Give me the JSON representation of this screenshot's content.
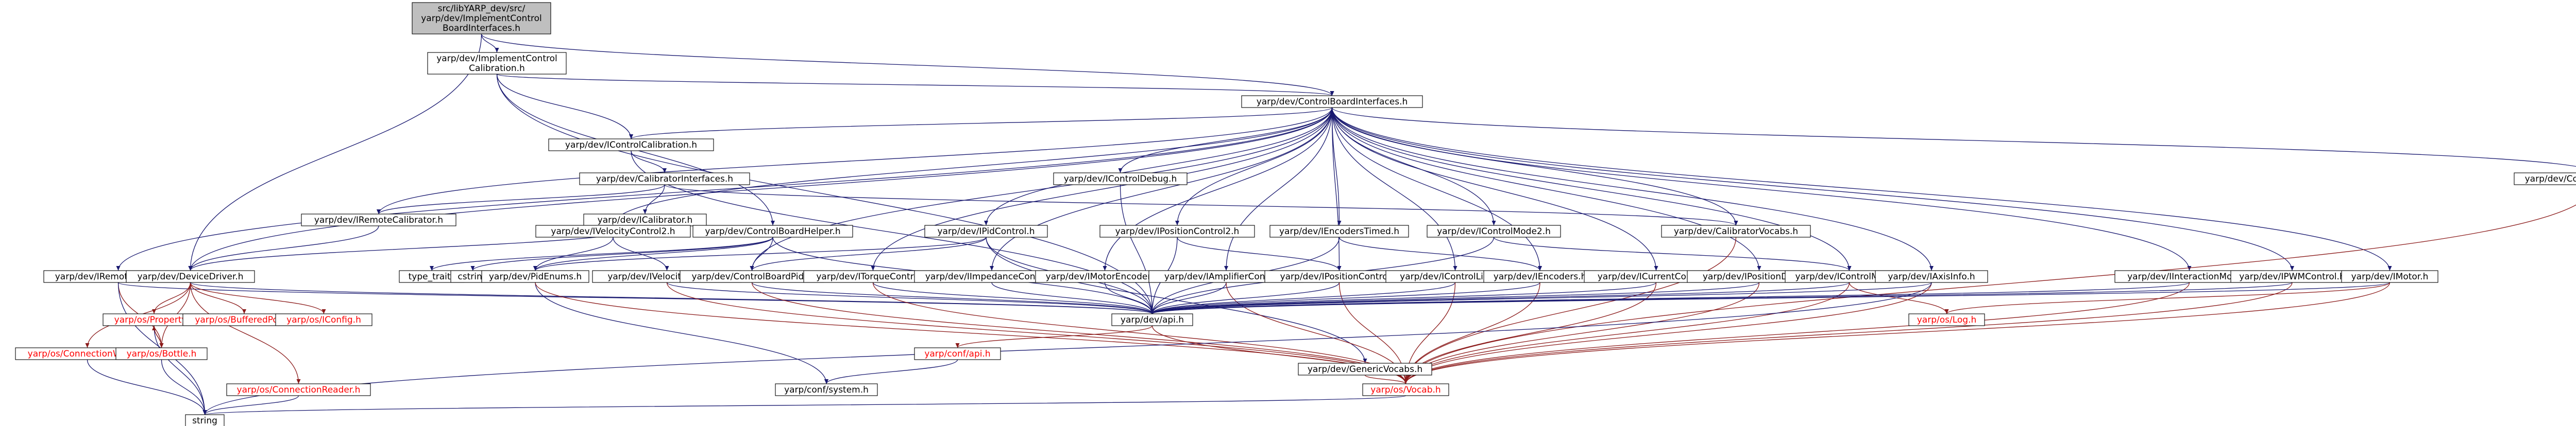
{
  "colors": {
    "root_fill": "#bfbfbf",
    "node_fill": "#ffffff",
    "node_border": "#000000",
    "missing_text": "#ff0000",
    "edge": "#191970",
    "edge_missing": "#8b1a1a"
  },
  "nodes": [
    {
      "id": "root",
      "lines": [
        "src/libYARP_dev/src/",
        "yarp/dev/ImplementControl",
        "BoardInterfaces.h"
      ],
      "kind": "root"
    },
    {
      "id": "implCal",
      "lines": [
        "yarp/dev/ImplementControl",
        "Calibration.h"
      ],
      "kind": "normal"
    },
    {
      "id": "cbi",
      "lines": [
        "yarp/dev/ControlBoardInterfaces.h"
      ],
      "kind": "normal"
    },
    {
      "id": "remoteVars",
      "lines": [
        "yarp/dev/IRemoteVariables.h"
      ],
      "kind": "normal"
    },
    {
      "id": "remoteCal",
      "lines": [
        "yarp/dev/IRemoteCalibrator.h"
      ],
      "kind": "normal"
    },
    {
      "id": "ctrlCal",
      "lines": [
        "yarp/dev/IControlCalibration.h"
      ],
      "kind": "normal"
    },
    {
      "id": "calIfaces",
      "lines": [
        "yarp/dev/CalibratorInterfaces.h"
      ],
      "kind": "normal"
    },
    {
      "id": "calibrator",
      "lines": [
        "yarp/dev/ICalibrator.h"
      ],
      "kind": "normal"
    },
    {
      "id": "velCtrl2",
      "lines": [
        "yarp/dev/IVelocityControl2.h"
      ],
      "kind": "normal"
    },
    {
      "id": "cbHelper",
      "lines": [
        "yarp/dev/ControlBoardHelper.h"
      ],
      "kind": "normal"
    },
    {
      "id": "pidCtrl",
      "lines": [
        "yarp/dev/IPidControl.h"
      ],
      "kind": "normal"
    },
    {
      "id": "ctrlDebug",
      "lines": [
        "yarp/dev/IControlDebug.h"
      ],
      "kind": "normal"
    },
    {
      "id": "posCtrl2",
      "lines": [
        "yarp/dev/IPositionControl2.h"
      ],
      "kind": "normal"
    },
    {
      "id": "encTimed",
      "lines": [
        "yarp/dev/IEncodersTimed.h"
      ],
      "kind": "normal"
    },
    {
      "id": "ctrlMode2",
      "lines": [
        "yarp/dev/IControlMode2.h"
      ],
      "kind": "normal"
    },
    {
      "id": "calVocabs",
      "lines": [
        "yarp/dev/CalibratorVocabs.h"
      ],
      "kind": "normal"
    },
    {
      "id": "cbVocabs",
      "lines": [
        "yarp/dev/ControlBoardVocabs.h"
      ],
      "kind": "normal"
    },
    {
      "id": "devDriver",
      "lines": [
        "yarp/dev/DeviceDriver.h"
      ],
      "kind": "normal"
    },
    {
      "id": "typeTraits",
      "lines": [
        "type_traits"
      ],
      "kind": "plain"
    },
    {
      "id": "cstring",
      "lines": [
        "cstring"
      ],
      "kind": "plain"
    },
    {
      "id": "pidEnums",
      "lines": [
        "yarp/dev/PidEnums.h"
      ],
      "kind": "normal"
    },
    {
      "id": "velCtrl",
      "lines": [
        "yarp/dev/IVelocityControl.h"
      ],
      "kind": "normal"
    },
    {
      "id": "cbPid",
      "lines": [
        "yarp/dev/ControlBoardPid.h"
      ],
      "kind": "normal"
    },
    {
      "id": "torque",
      "lines": [
        "yarp/dev/ITorqueControl.h"
      ],
      "kind": "normal"
    },
    {
      "id": "impedance",
      "lines": [
        "yarp/dev/IImpedanceControl.h"
      ],
      "kind": "normal"
    },
    {
      "id": "motorEnc",
      "lines": [
        "yarp/dev/IMotorEncoders.h"
      ],
      "kind": "normal"
    },
    {
      "id": "amplifier",
      "lines": [
        "yarp/dev/IAmplifierControl.h"
      ],
      "kind": "normal"
    },
    {
      "id": "posCtrl",
      "lines": [
        "yarp/dev/IPositionControl.h"
      ],
      "kind": "normal"
    },
    {
      "id": "ctrlLimits",
      "lines": [
        "yarp/dev/IControlLimits.h"
      ],
      "kind": "normal"
    },
    {
      "id": "encoders",
      "lines": [
        "yarp/dev/IEncoders.h"
      ],
      "kind": "normal"
    },
    {
      "id": "current",
      "lines": [
        "yarp/dev/ICurrentControl.h"
      ],
      "kind": "normal"
    },
    {
      "id": "posDirect",
      "lines": [
        "yarp/dev/IPositionDirect.h"
      ],
      "kind": "normal"
    },
    {
      "id": "ctrlMode",
      "lines": [
        "yarp/dev/IControlMode.h"
      ],
      "kind": "normal"
    },
    {
      "id": "axisInfo",
      "lines": [
        "yarp/dev/IAxisInfo.h"
      ],
      "kind": "normal"
    },
    {
      "id": "interMode",
      "lines": [
        "yarp/dev/IInteractionMode.h"
      ],
      "kind": "normal"
    },
    {
      "id": "pwm",
      "lines": [
        "yarp/dev/IPWMControl.h"
      ],
      "kind": "normal"
    },
    {
      "id": "motor",
      "lines": [
        "yarp/dev/IMotor.h"
      ],
      "kind": "normal"
    },
    {
      "id": "property",
      "lines": [
        "yarp/os/Property.h"
      ],
      "kind": "missing"
    },
    {
      "id": "buffPort",
      "lines": [
        "yarp/os/BufferedPort.h"
      ],
      "kind": "missing"
    },
    {
      "id": "osConfig",
      "lines": [
        "yarp/os/IConfig.h"
      ],
      "kind": "missing"
    },
    {
      "id": "connWriter",
      "lines": [
        "yarp/os/ConnectionWriter.h"
      ],
      "kind": "missing"
    },
    {
      "id": "bottle",
      "lines": [
        "yarp/os/Bottle.h"
      ],
      "kind": "missing"
    },
    {
      "id": "connReader",
      "lines": [
        "yarp/os/ConnectionReader.h"
      ],
      "kind": "missing"
    },
    {
      "id": "api",
      "lines": [
        "yarp/dev/api.h"
      ],
      "kind": "normal"
    },
    {
      "id": "osLog",
      "lines": [
        "yarp/os/Log.h"
      ],
      "kind": "missing"
    },
    {
      "id": "confApi",
      "lines": [
        "yarp/conf/api.h"
      ],
      "kind": "missing"
    },
    {
      "id": "genVocabs",
      "lines": [
        "yarp/dev/GenericVocabs.h"
      ],
      "kind": "normal"
    },
    {
      "id": "vocab",
      "lines": [
        "yarp/os/Vocab.h"
      ],
      "kind": "missing"
    },
    {
      "id": "confSystem",
      "lines": [
        "yarp/conf/system.h"
      ],
      "kind": "normal"
    },
    {
      "id": "string",
      "lines": [
        "string"
      ],
      "kind": "plain"
    }
  ],
  "edges": [
    [
      "root",
      "implCal"
    ],
    [
      "root",
      "cbi"
    ],
    [
      "root",
      "devDriver"
    ],
    [
      "implCal",
      "cbi"
    ],
    [
      "implCal",
      "ctrlCal"
    ],
    [
      "implCal",
      "cbHelper"
    ],
    [
      "implCal",
      "api"
    ],
    [
      "cbi",
      "remoteVars"
    ],
    [
      "cbi",
      "remoteCal"
    ],
    [
      "cbi",
      "ctrlCal"
    ],
    [
      "cbi",
      "velCtrl2"
    ],
    [
      "cbi",
      "pidCtrl"
    ],
    [
      "cbi",
      "ctrlDebug"
    ],
    [
      "cbi",
      "posCtrl2"
    ],
    [
      "cbi",
      "encTimed"
    ],
    [
      "cbi",
      "ctrlMode2"
    ],
    [
      "cbi",
      "calVocabs"
    ],
    [
      "cbi",
      "cbVocabs"
    ],
    [
      "cbi",
      "devDriver"
    ],
    [
      "cbi",
      "cbPid"
    ],
    [
      "cbi",
      "torque"
    ],
    [
      "cbi",
      "impedance"
    ],
    [
      "cbi",
      "motorEnc"
    ],
    [
      "cbi",
      "amplifier"
    ],
    [
      "cbi",
      "posCtrl"
    ],
    [
      "cbi",
      "ctrlLimits"
    ],
    [
      "cbi",
      "encoders"
    ],
    [
      "cbi",
      "current"
    ],
    [
      "cbi",
      "posDirect"
    ],
    [
      "cbi",
      "ctrlMode"
    ],
    [
      "cbi",
      "axisInfo"
    ],
    [
      "cbi",
      "interMode"
    ],
    [
      "cbi",
      "pwm"
    ],
    [
      "cbi",
      "motor"
    ],
    [
      "ctrlCal",
      "calIfaces"
    ],
    [
      "ctrlCal",
      "api"
    ],
    [
      "calIfaces",
      "calibrator"
    ],
    [
      "calIfaces",
      "remoteCal"
    ],
    [
      "calIfaces",
      "calVocabs"
    ],
    [
      "remoteCal",
      "devDriver"
    ],
    [
      "calibrator",
      "devDriver"
    ],
    [
      "remoteVars",
      "bottle"
    ],
    [
      "remoteVars",
      "api"
    ],
    [
      "remoteVars",
      "string"
    ],
    [
      "velCtrl2",
      "velCtrl"
    ],
    [
      "velCtrl2",
      "pidEnums"
    ],
    [
      "cbHelper",
      "typeTraits"
    ],
    [
      "cbHelper",
      "cstring"
    ],
    [
      "cbHelper",
      "pidEnums"
    ],
    [
      "cbHelper",
      "cbPid"
    ],
    [
      "cbHelper",
      "api"
    ],
    [
      "pidCtrl",
      "pidEnums"
    ],
    [
      "pidCtrl",
      "cbPid"
    ],
    [
      "pidCtrl",
      "api"
    ],
    [
      "pidCtrl",
      "genVocabs"
    ],
    [
      "ctrlDebug",
      "api"
    ],
    [
      "posCtrl2",
      "posCtrl"
    ],
    [
      "posCtrl2",
      "api"
    ],
    [
      "encTimed",
      "encoders"
    ],
    [
      "encTimed",
      "api"
    ],
    [
      "ctrlMode2",
      "ctrlMode"
    ],
    [
      "ctrlMode2",
      "api"
    ],
    [
      "calVocabs",
      "vocab"
    ],
    [
      "cbVocabs",
      "vocab"
    ],
    [
      "devDriver",
      "property"
    ],
    [
      "devDriver",
      "buffPort"
    ],
    [
      "devDriver",
      "osConfig"
    ],
    [
      "devDriver",
      "connWriter"
    ],
    [
      "devDriver",
      "bottle"
    ],
    [
      "devDriver",
      "connReader"
    ],
    [
      "devDriver",
      "api"
    ],
    [
      "pidEnums",
      "confSystem"
    ],
    [
      "pidEnums",
      "vocab"
    ],
    [
      "velCtrl",
      "api"
    ],
    [
      "velCtrl",
      "vocab"
    ],
    [
      "cbPid",
      "api"
    ],
    [
      "cbPid",
      "vocab"
    ],
    [
      "torque",
      "api"
    ],
    [
      "torque",
      "vocab"
    ],
    [
      "impedance",
      "api"
    ],
    [
      "motorEnc",
      "api"
    ],
    [
      "amplifier",
      "api"
    ],
    [
      "amplifier",
      "vocab"
    ],
    [
      "posCtrl",
      "api"
    ],
    [
      "posCtrl",
      "vocab"
    ],
    [
      "ctrlLimits",
      "api"
    ],
    [
      "ctrlLimits",
      "vocab"
    ],
    [
      "encoders",
      "api"
    ],
    [
      "encoders",
      "vocab"
    ],
    [
      "current",
      "api"
    ],
    [
      "current",
      "vocab"
    ],
    [
      "posDirect",
      "api"
    ],
    [
      "posDirect",
      "vocab"
    ],
    [
      "ctrlMode",
      "api"
    ],
    [
      "ctrlMode",
      "vocab"
    ],
    [
      "ctrlMode",
      "osLog"
    ],
    [
      "axisInfo",
      "api"
    ],
    [
      "axisInfo",
      "vocab"
    ],
    [
      "axisInfo",
      "string"
    ],
    [
      "interMode",
      "api"
    ],
    [
      "interMode",
      "vocab"
    ],
    [
      "pwm",
      "api"
    ],
    [
      "pwm",
      "vocab"
    ],
    [
      "motor",
      "api"
    ],
    [
      "motor",
      "vocab"
    ],
    [
      "motor",
      "osLog"
    ],
    [
      "property",
      "bottle"
    ],
    [
      "property",
      "string"
    ],
    [
      "bottle",
      "property"
    ],
    [
      "bottle",
      "string"
    ],
    [
      "connWriter",
      "string"
    ],
    [
      "connReader",
      "string"
    ],
    [
      "api",
      "confApi"
    ],
    [
      "api",
      "vocab"
    ],
    [
      "confApi",
      "confSystem"
    ],
    [
      "genVocabs",
      "vocab"
    ],
    [
      "vocab",
      "string"
    ]
  ]
}
